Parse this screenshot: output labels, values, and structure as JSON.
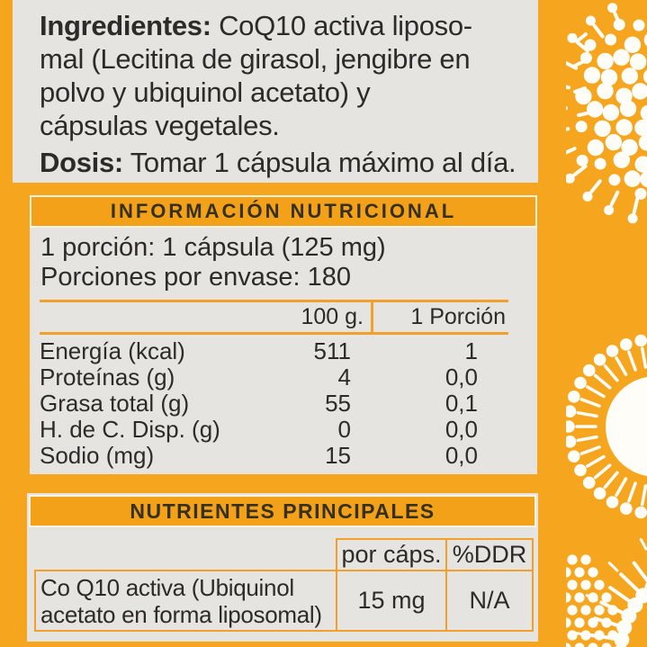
{
  "colors": {
    "background_orange": "#F6A51F",
    "band_orange": "#F3A119",
    "table_line_orange": "#F0A02B",
    "panel_gray": "#E6E4E1",
    "text_dark": "#2D2B28",
    "decoration_white": "#FFFDF8"
  },
  "ingredients_panel": {
    "ingredients_label": "Ingredientes:",
    "ingredients_text": " CoQ10 activa liposo-\nmal (Lecitina de girasol, jengibre en\npolvo y ubiquinol acetato) y\ncápsulas vegetales.",
    "dose_label": "Dosis:",
    "dose_text": " Tomar 1 cápsula máximo al día."
  },
  "nutrition_panel": {
    "title": "INFORMACIÓN NUTRICIONAL",
    "serving_line1": "1 porción: 1 cápsula (125 mg)",
    "serving_line2": "Porciones por envase: 180",
    "table": {
      "col1_header": "100 g.",
      "col2_header": "1 Porción",
      "rows": [
        {
          "label": "Energía (kcal)",
          "per100": "511",
          "perServing": "1"
        },
        {
          "label": "Proteínas (g)",
          "per100": "4",
          "perServing": "0,0"
        },
        {
          "label": "Grasa total (g)",
          "per100": "55",
          "perServing": "0,1"
        },
        {
          "label": "H. de C. Disp. (g)",
          "per100": "0",
          "perServing": "0,0"
        },
        {
          "label": "Sodio (mg)",
          "per100": "15",
          "perServing": "0,0"
        }
      ]
    }
  },
  "main_nutrients_panel": {
    "title": "NUTRIENTES PRINCIPALES",
    "table": {
      "col1_header": "por cáps.",
      "col2_header": "%DDR",
      "rows": [
        {
          "label": "Co Q10 activa (Ubiquinol\nacetato en forma liposomal)",
          "per_capsule": "15 mg",
          "ddr": "N/A"
        }
      ]
    }
  }
}
